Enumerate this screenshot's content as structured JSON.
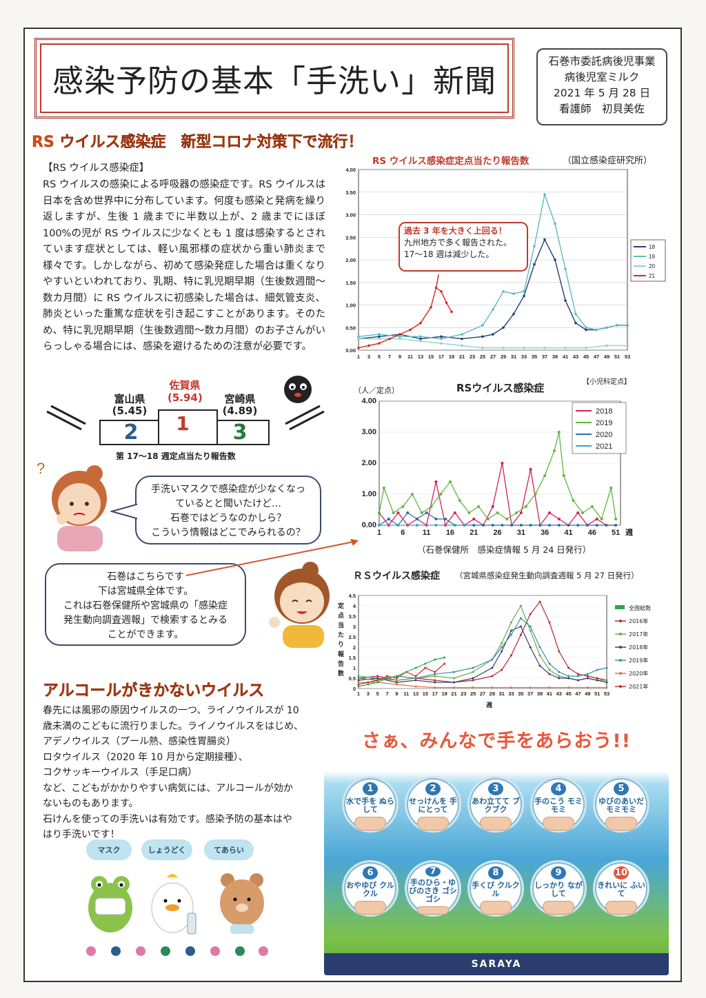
{
  "header": {
    "title": "感染予防の基本「手洗い」新聞",
    "info_lines": [
      "石巻市委託病後児事業",
      "病後児室ミルク",
      "2021 年 5 月 28 日",
      "看護師　初貝美佐"
    ]
  },
  "section1": {
    "heading": "RS ウイルス感染症　新型コロナ対策下で流行！",
    "subhead": "【RS ウイルス感染症】",
    "paragraph": "RS ウイルスの感染による呼吸器の感染症です。RS ウイルスは日本を含め世界中に分布しています。何度も感染と発病を繰り返しますが、生後 1 歳までに半数以上が、2 歳までにほぼ 100%の児が RS ウイルスに少なくとも 1 度は感染するとされています症状としては、軽い風邪様の症状から重い肺炎まで様々です。しかしながら、初めて感染発症した場合は重くなりやすいといわれており、乳期、特に乳児期早期（生後数週間～数カ月間）に RS ウイルスに初感染した場合は、細気管支炎、肺炎といった重篤な症状を引き起こすことがあります。そのため、特に乳児期早期（生後数週間～数カ月間）のお子さんがいらっしゃる場合には、感染を避けるための注意が必要です。"
  },
  "podium": {
    "first": {
      "pref": "佐賀県",
      "value": "(5.94)",
      "rank": "1"
    },
    "second": {
      "pref": "富山県",
      "value": "(5.45)",
      "rank": "2"
    },
    "third": {
      "pref": "宮崎県",
      "value": "(4.89)",
      "rank": "3"
    },
    "caption": "第 17～18 週定点当たり報告数"
  },
  "bubble1": [
    "手洗いマスクで感染症が少なくなっ",
    "ているとと聞いたけど…",
    "石巻ではどうなのかしら？",
    "こういう情報はどこでみられるの？"
  ],
  "bubble2": [
    "石巻はこちらです",
    "下は宮城県全体です。",
    "これは石巻保健所や宮城県の「感染症",
    "発生動向調査週報」で検索するとみる",
    "ことができます。"
  ],
  "section2": {
    "heading": "アルコールがきかないウイルス",
    "lines": [
      "春先には風邪の原因ウイルスの一つ、ライノウイルスが 10",
      "歳未満のこどもに流行りました。ライノウイルスをはじめ、",
      "アデノウイルス（プール熱、感染性胃腸炎）",
      "ロタウイルス（2020 年 10 月から定期接種）、",
      "コクサッキーウイルス（手足口病）",
      "など、こどもがかかりやすい病気には、アルコールが効か",
      "ないものもあります。",
      "石けんを使っての手洗いは有効です。感染予防の基本はや",
      "はり手洗いです！"
    ]
  },
  "mascots": [
    "マスク",
    "しょうどく",
    "てあらい"
  ],
  "handwash": {
    "title": "さぁ、みんなで手をあらおう!!",
    "brand": "SARAYA",
    "steps": [
      {
        "n": "1",
        "label": "水で手を ぬらして"
      },
      {
        "n": "2",
        "label": "せっけんを 手にとって"
      },
      {
        "n": "3",
        "label": "あわ立てて ブクブク"
      },
      {
        "n": "4",
        "label": "手のこう モミモミ"
      },
      {
        "n": "5",
        "label": "ゆびのあいだ モミモミ"
      },
      {
        "n": "6",
        "label": "おやゆび クルクル"
      },
      {
        "n": "7",
        "label": "手のひら・ゆびのさき ゴシゴシ"
      },
      {
        "n": "8",
        "label": "手くび クルクル"
      },
      {
        "n": "9",
        "label": "しっかり ながして"
      },
      {
        "n": "10",
        "label": "きれいに ふいて"
      }
    ]
  },
  "chart_data": [
    {
      "type": "line",
      "title": "RS ウイルス感染症定点当たり報告数",
      "source": "（国立感染症研究所）",
      "annotation": [
        "過去 3 年を大きく上回る！",
        "九州地方で多く報告された。",
        "17～18 週は減少した。"
      ],
      "ylim": [
        0,
        4
      ],
      "yticks": [
        "0.00",
        "0.50",
        "1.00",
        "1.50",
        "2.00",
        "2.50",
        "3.00",
        "3.50",
        "4.00"
      ],
      "xticks": [
        "1",
        "3",
        "5",
        "7",
        "9",
        "11",
        "13",
        "15",
        "17",
        "19",
        "21",
        "23",
        "25",
        "27",
        "29",
        "31",
        "33",
        "35",
        "37",
        "39",
        "41",
        "43",
        "45",
        "47",
        "49",
        "51",
        "53"
      ],
      "legend": [
        "18",
        "19",
        "20",
        "21"
      ],
      "colors": [
        "#1f3f7a",
        "#5fb7c6",
        "#8fd3c7",
        "#d6281e"
      ],
      "series": [
        {
          "name": "18",
          "x": [
            1,
            5,
            9,
            13,
            17,
            21,
            25,
            27,
            29,
            31,
            33,
            35,
            37,
            39,
            41,
            43,
            45,
            47,
            49,
            51,
            53
          ],
          "y": [
            0.25,
            0.3,
            0.35,
            0.25,
            0.3,
            0.25,
            0.3,
            0.35,
            0.5,
            0.8,
            1.2,
            1.9,
            2.45,
            2.0,
            1.1,
            0.6,
            0.45,
            0.45,
            0.5,
            0.55,
            0.55
          ]
        },
        {
          "name": "19",
          "x": [
            1,
            5,
            9,
            13,
            17,
            21,
            25,
            27,
            29,
            31,
            33,
            35,
            37,
            39,
            41,
            43,
            45,
            47,
            49,
            51,
            53
          ],
          "y": [
            0.3,
            0.35,
            0.3,
            0.3,
            0.25,
            0.35,
            0.55,
            0.9,
            1.3,
            1.25,
            1.3,
            2.3,
            3.45,
            2.8,
            1.8,
            0.8,
            0.5,
            0.45,
            0.5,
            0.55,
            0.55
          ]
        },
        {
          "name": "20",
          "x": [
            1,
            5,
            9,
            13,
            17,
            21,
            25,
            29,
            33,
            37,
            41,
            45,
            49,
            53
          ],
          "y": [
            0.25,
            0.25,
            0.25,
            0.2,
            0.15,
            0.1,
            0.05,
            0.05,
            0.05,
            0.05,
            0.05,
            0.05,
            0.1,
            0.1
          ]
        },
        {
          "name": "21",
          "x": [
            1,
            3,
            5,
            7,
            9,
            11,
            13,
            15,
            16,
            17,
            18,
            19
          ],
          "y": [
            0.05,
            0.1,
            0.15,
            0.25,
            0.35,
            0.45,
            0.6,
            0.95,
            1.38,
            1.3,
            1.05,
            0.85
          ]
        }
      ]
    },
    {
      "type": "line",
      "title": "RSウイルス感染症",
      "corner": "【小児科定点】",
      "unit": "（人／定点）",
      "footer": "（石巻保健所　感染症情報 5 月 24 日発行）",
      "xlabel_suffix": "週",
      "ylim": [
        0,
        4
      ],
      "yticks": [
        "0.00",
        "1.00",
        "2.00",
        "3.00",
        "4.00"
      ],
      "xticks": [
        "1",
        "6",
        "11",
        "16",
        "21",
        "26",
        "31",
        "36",
        "41",
        "46",
        "51"
      ],
      "legend": [
        "2018",
        "2019",
        "2020",
        "2021"
      ],
      "colors": [
        "#d41f5a",
        "#5cb83a",
        "#2f6fa6",
        "#3ba3c2"
      ],
      "series": [
        {
          "name": "2018",
          "x": [
            1,
            3,
            5,
            7,
            9,
            11,
            13,
            15,
            17,
            19,
            21,
            23,
            25,
            27,
            29,
            31,
            33,
            35,
            37,
            39,
            41,
            43,
            45,
            47,
            49,
            51
          ],
          "y": [
            0.4,
            0,
            0.4,
            0,
            0.2,
            0,
            1.4,
            0,
            0.4,
            0,
            0.2,
            0,
            0.6,
            2.0,
            0,
            0.4,
            1.8,
            0,
            0.4,
            0.2,
            0,
            0.4,
            0,
            0.2,
            0,
            0
          ]
        },
        {
          "name": "2019",
          "x": [
            1,
            2,
            4,
            6,
            8,
            10,
            12,
            14,
            16,
            18,
            20,
            22,
            24,
            26,
            28,
            30,
            32,
            34,
            36,
            38,
            39,
            40,
            42,
            44,
            46,
            48,
            50,
            51
          ],
          "y": [
            0.4,
            1.2,
            0.4,
            0.6,
            1.0,
            0.4,
            0.6,
            1.0,
            1.4,
            0.8,
            0.4,
            0.6,
            0.2,
            0.4,
            0.2,
            0.4,
            0.6,
            1.0,
            1.6,
            2.4,
            3.0,
            1.6,
            0.8,
            0.4,
            0.6,
            0.2,
            1.2,
            0.2
          ]
        },
        {
          "name": "2020",
          "x": [
            1,
            3,
            5,
            7,
            9,
            11,
            13,
            15,
            17,
            19,
            21,
            23,
            25,
            27,
            29,
            31,
            33,
            35,
            37,
            39,
            41,
            43,
            45,
            47,
            49,
            51
          ],
          "y": [
            0,
            0.2,
            0,
            0.4,
            0.2,
            0.4,
            0.2,
            0.2,
            0,
            0,
            0,
            0,
            0,
            0,
            0,
            0,
            0,
            0,
            0,
            0,
            0,
            0,
            0,
            0,
            0,
            0
          ]
        },
        {
          "name": "2021",
          "x": [
            1,
            5,
            9,
            13,
            17,
            19
          ],
          "y": [
            0,
            0,
            0,
            0,
            0,
            0
          ]
        }
      ]
    },
    {
      "type": "line",
      "title": "ＲＳウイルス感染症",
      "source": "（宮城県感染症発生動向調査週報 5 月 27 日発行）",
      "ylabel": "定点当たり報告数",
      "xlabel": "週",
      "ylim": [
        0,
        4.5
      ],
      "yticks": [
        "0",
        "0.5",
        "1",
        "1.5",
        "2",
        "2.5",
        "3",
        "3.5",
        "4",
        "4.5"
      ],
      "xticks": [
        "1",
        "3",
        "5",
        "7",
        "9",
        "11",
        "13",
        "15",
        "17",
        "19",
        "21",
        "23",
        "25",
        "27",
        "29",
        "31",
        "33",
        "35",
        "37",
        "39",
        "41",
        "43",
        "45",
        "47",
        "49",
        "51",
        "53"
      ],
      "legend": [
        "全国総数",
        "2016年",
        "2017年",
        "2018年",
        "2019年",
        "2020年",
        "2021年"
      ],
      "colors": [
        "#2aa84a",
        "#b8262c",
        "#6aa84f",
        "#38406e",
        "#3a8fa3",
        "#e0763a",
        "#d0282c"
      ],
      "series": [
        {
          "name": "2016年",
          "x": [
            1,
            5,
            9,
            13,
            17,
            21,
            25,
            29,
            31,
            33,
            35,
            37,
            39,
            41,
            43,
            45,
            47,
            49,
            51,
            53
          ],
          "y": [
            0.5,
            0.6,
            0.4,
            0.5,
            0.4,
            0.3,
            0.4,
            0.6,
            0.9,
            1.6,
            2.6,
            3.6,
            4.2,
            3.2,
            1.8,
            1.0,
            0.7,
            0.6,
            0.5,
            0.4
          ]
        },
        {
          "name": "2017年",
          "x": [
            1,
            5,
            9,
            13,
            17,
            21,
            25,
            29,
            31,
            33,
            35,
            37,
            39,
            41,
            43,
            45,
            47,
            49,
            51,
            53
          ],
          "y": [
            0.6,
            0.5,
            0.4,
            0.5,
            0.6,
            0.5,
            0.8,
            1.4,
            2.2,
            3.2,
            4.0,
            2.8,
            1.6,
            0.9,
            0.6,
            0.5,
            0.4,
            0.5,
            0.4,
            0.4
          ]
        },
        {
          "name": "2018年",
          "x": [
            1,
            5,
            9,
            13,
            17,
            21,
            25,
            29,
            31,
            33,
            35,
            37,
            39,
            41,
            43,
            45,
            47,
            49,
            51,
            53
          ],
          "y": [
            0.4,
            0.5,
            0.3,
            0.4,
            0.3,
            0.3,
            0.5,
            1.0,
            1.8,
            2.8,
            3.0,
            2.0,
            1.1,
            0.7,
            0.5,
            0.5,
            0.4,
            0.5,
            0.4,
            0.3
          ]
        },
        {
          "name": "2019年",
          "x": [
            1,
            5,
            9,
            13,
            17,
            21,
            25,
            29,
            31,
            33,
            35,
            37,
            39,
            41,
            43,
            45,
            47,
            49,
            51,
            53
          ],
          "y": [
            0.5,
            0.4,
            0.6,
            0.5,
            0.7,
            0.8,
            1.0,
            1.4,
            2.0,
            2.6,
            3.4,
            3.0,
            2.0,
            1.2,
            0.8,
            0.6,
            0.6,
            0.7,
            0.9,
            1.0
          ]
        },
        {
          "name": "2020年",
          "x": [
            1,
            5,
            9,
            13,
            17,
            21,
            25,
            29,
            33,
            37,
            41,
            45,
            49,
            53
          ],
          "y": [
            0.3,
            0.3,
            0.2,
            0.1,
            0.05,
            0.05,
            0.05,
            0.05,
            0.05,
            0.05,
            0.05,
            0.05,
            0.05,
            0.05
          ]
        },
        {
          "name": "2021年",
          "x": [
            1,
            3,
            5,
            7,
            9,
            11,
            13,
            15,
            17,
            19
          ],
          "y": [
            0.2,
            0.3,
            0.4,
            0.6,
            0.5,
            0.8,
            0.6,
            1.0,
            0.8,
            1.2
          ]
        },
        {
          "name": "全国総数",
          "x": [
            1,
            3,
            5,
            7,
            9,
            11,
            13,
            15,
            17,
            19
          ],
          "y": [
            0.1,
            0.2,
            0.3,
            0.5,
            0.6,
            0.8,
            1.0,
            1.2,
            1.4,
            1.5
          ]
        }
      ]
    }
  ]
}
